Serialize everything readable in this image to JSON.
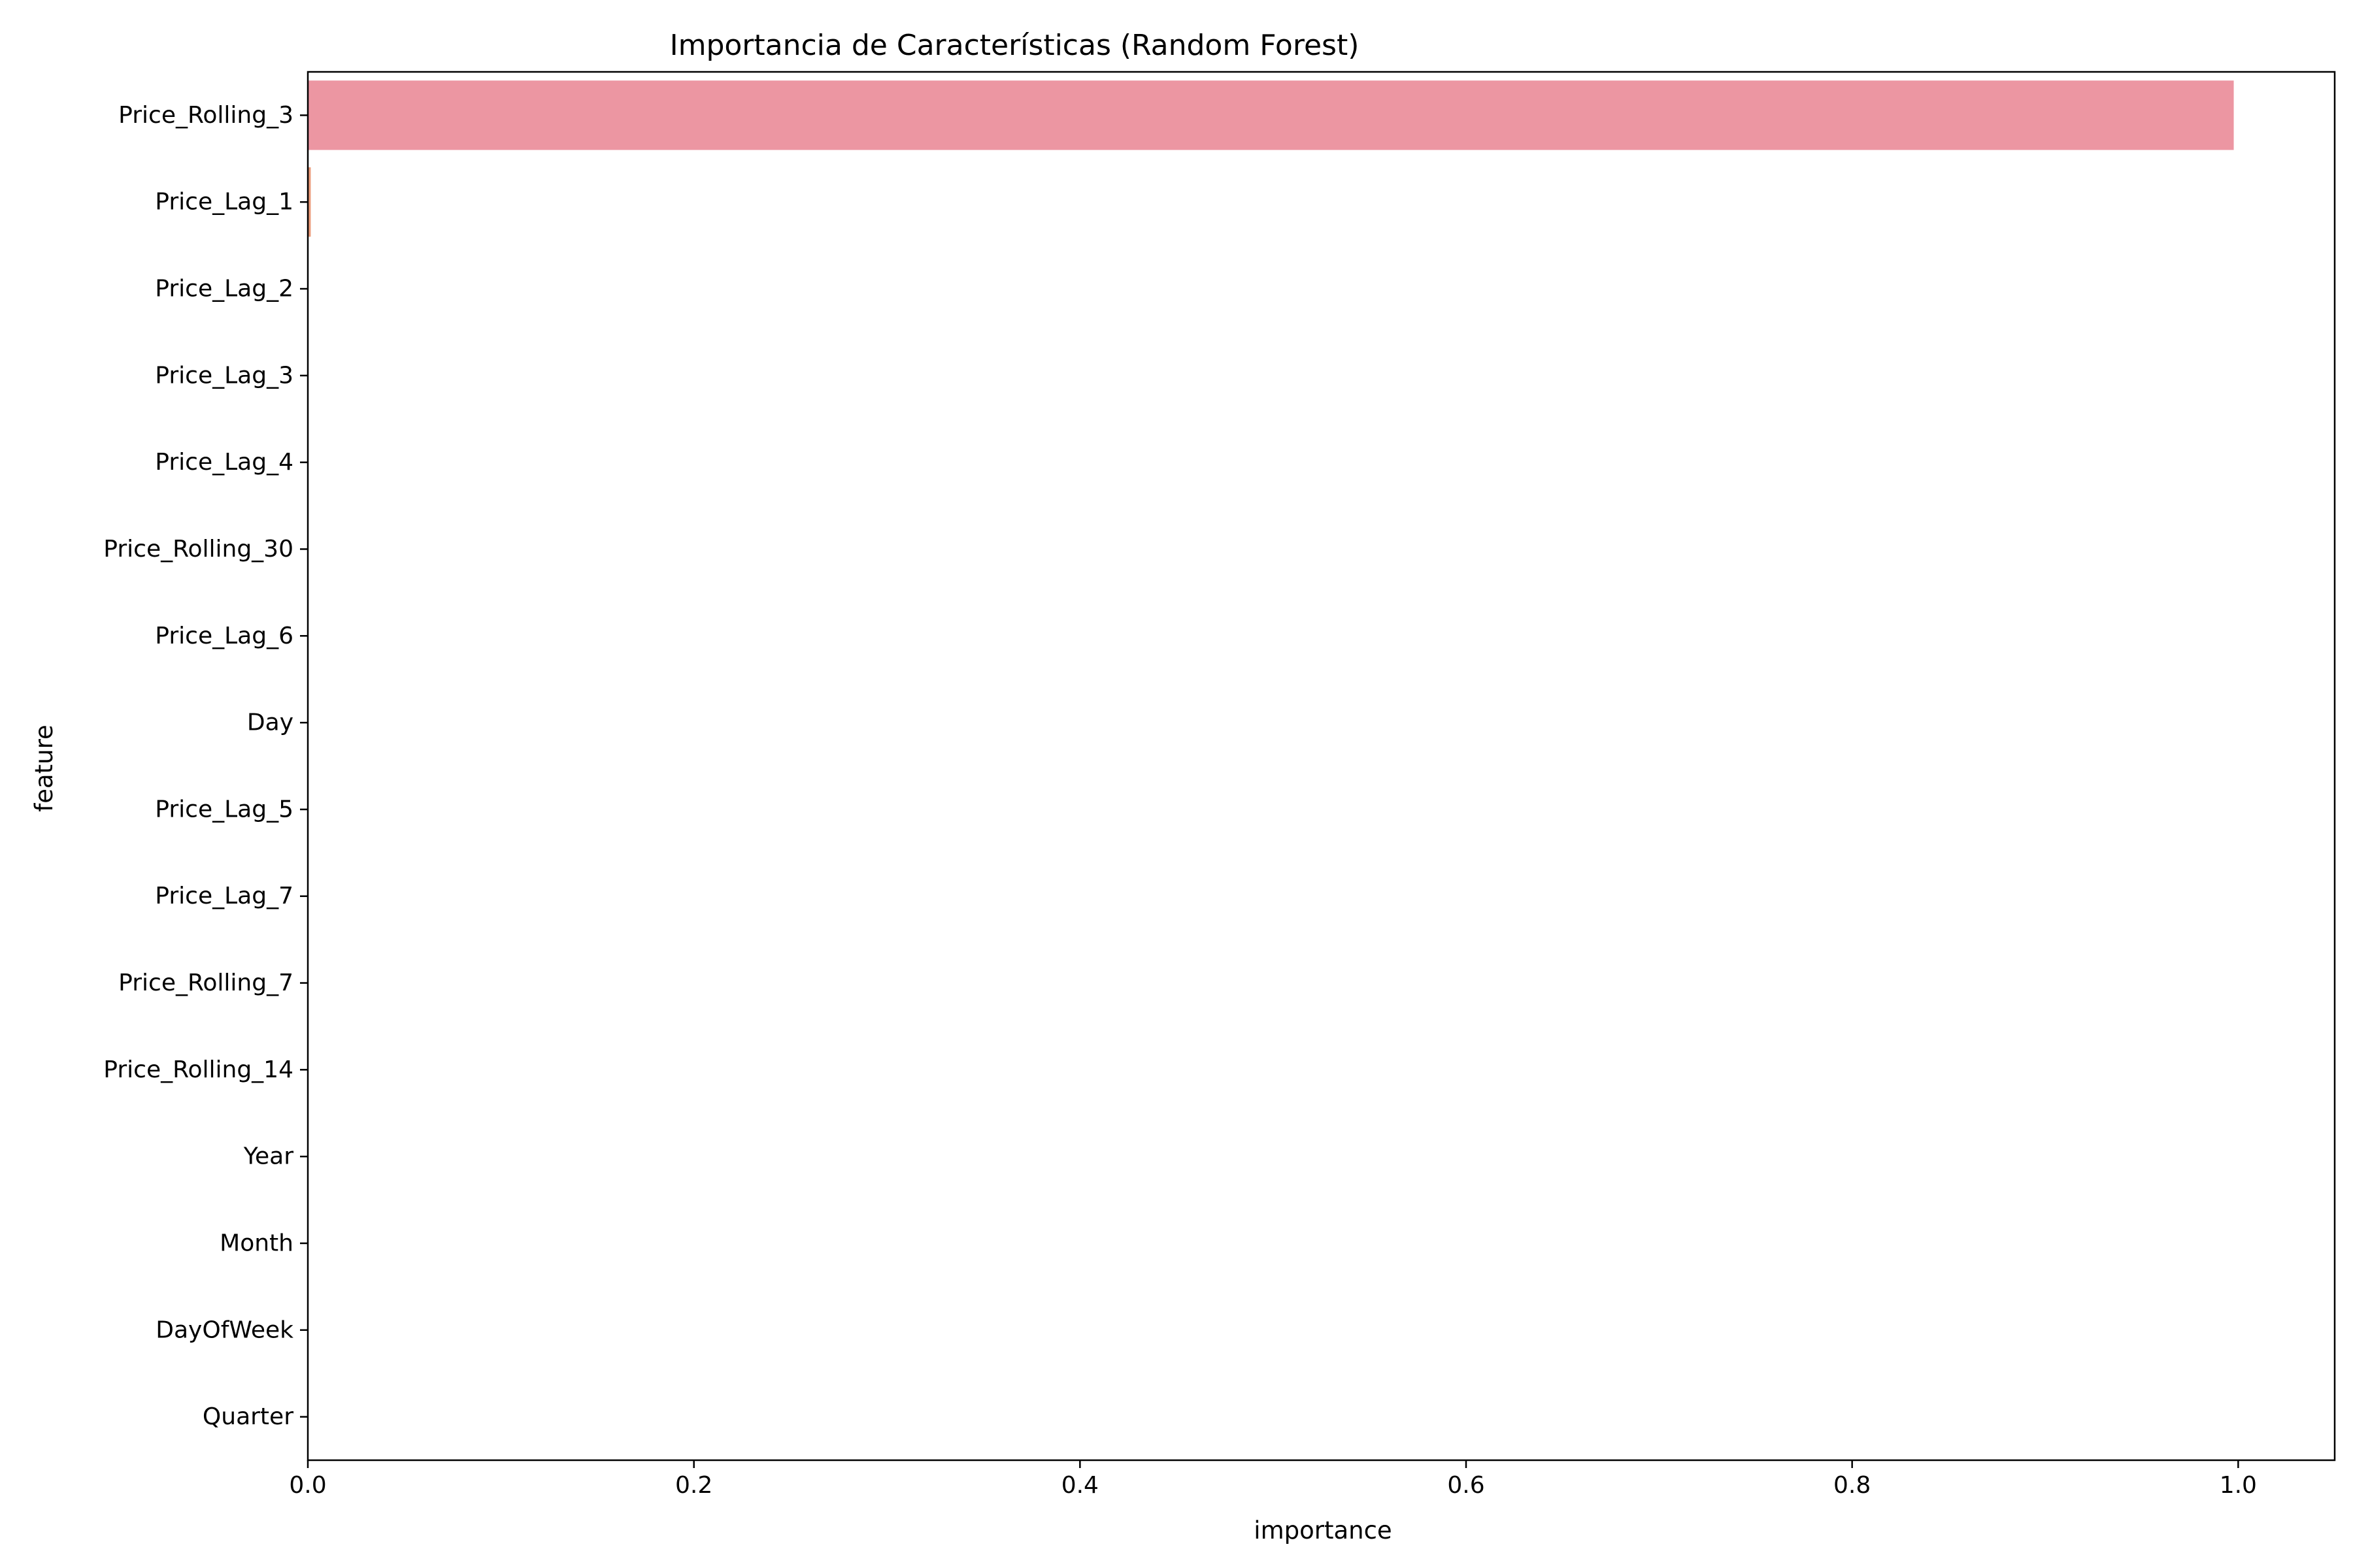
{
  "chart_data": {
    "type": "bar",
    "orientation": "horizontal",
    "title": "Importancia de Características (Random Forest)",
    "xlabel": "importance",
    "ylabel": "feature",
    "xlim": [
      0.0,
      1.05
    ],
    "xticks": [
      0.0,
      0.2,
      0.4,
      0.6,
      0.8,
      1.0
    ],
    "xtick_labels": [
      "0.0",
      "0.2",
      "0.4",
      "0.6",
      "0.8",
      "1.0"
    ],
    "categories": [
      "Price_Rolling_3",
      "Price_Lag_1",
      "Price_Lag_2",
      "Price_Lag_3",
      "Price_Lag_4",
      "Price_Rolling_30",
      "Price_Lag_6",
      "Day",
      "Price_Lag_5",
      "Price_Lag_7",
      "Price_Rolling_7",
      "Price_Rolling_14",
      "Year",
      "Month",
      "DayOfWeek",
      "Quarter"
    ],
    "values": [
      0.9977,
      0.0015,
      0.0001,
      0.0001,
      0.0001,
      5e-05,
      5e-05,
      4e-05,
      3e-05,
      3e-05,
      2e-05,
      2e-05,
      1e-05,
      1e-05,
      1e-05,
      0.0
    ],
    "colors": [
      "#ec96a2",
      "#ea9a79",
      "#d9a565",
      "#c6ad64",
      "#b1b464",
      "#93bc63",
      "#5fc263",
      "#5dbf97",
      "#5fbdab",
      "#60bbbb",
      "#63b8cc",
      "#68b4e0",
      "#94aae8",
      "#b89de9",
      "#d98ee8",
      "#e88fcd"
    ],
    "grid": false,
    "legend": "none"
  }
}
